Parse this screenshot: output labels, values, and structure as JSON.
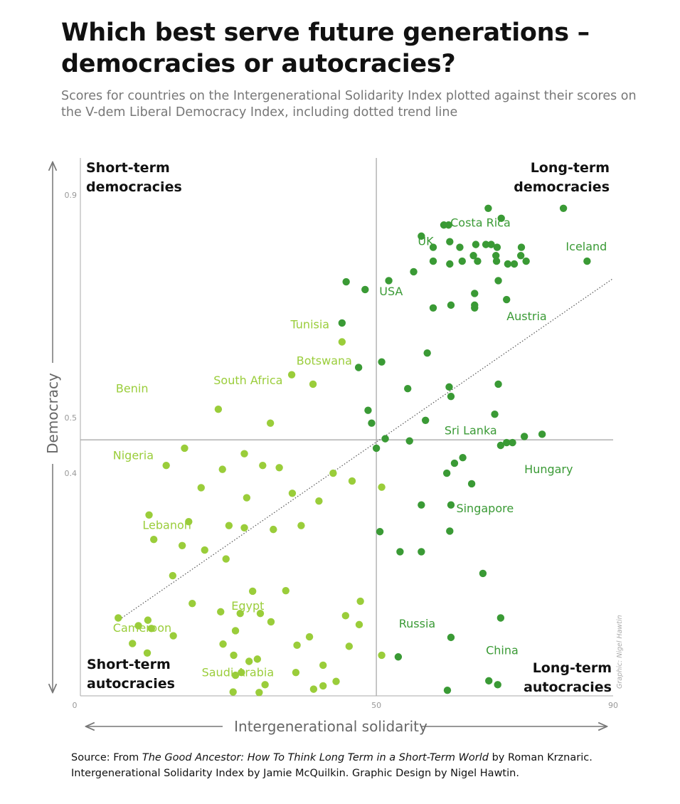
{
  "title": "Which best serve future generations – democracies or autocracies?",
  "subtitle": "Scores for countries on the Intergenerational Solidarity Index plotted against their scores on the V-dem Liberal Democracy Index, including dotted trend line",
  "source": {
    "prefix": "Source: From ",
    "book": "The Good Ancestor: How To Think Long Term in a Short-Term World",
    "suffix": " by Roman Krznaric. Intergenerational Solidarity Index by Jamie McQuilkin. Graphic Design by Nigel Hawtin."
  },
  "credit": "Graphic: Nigel Hawtin",
  "colors": {
    "long_term": "#3a9a35",
    "short_term": "#9acd3a",
    "axis": "#aaaaaa",
    "arrow": "#777777",
    "quadrant_text": "#111111"
  },
  "chart_data": {
    "type": "scatter",
    "xlabel": "Intergenerational solidarity",
    "ylabel": "Democracy",
    "xlim": [
      0,
      90
    ],
    "ylim": [
      0,
      0.9
    ],
    "x_ticks": [
      {
        "value": 0,
        "label": "0"
      },
      {
        "value": 50,
        "label": "50"
      },
      {
        "value": 90,
        "label": "90"
      }
    ],
    "y_ticks": [
      {
        "value": 0.9,
        "label": "0.9"
      },
      {
        "value": 0.5,
        "label": "0.5"
      },
      {
        "value": 0.4,
        "label": "0.4"
      }
    ],
    "divider": {
      "x": 50,
      "y": 0.46
    },
    "quadrants": {
      "top_left": "Short-term democracies",
      "top_right": "Long-term democracies",
      "bottom_left": "Short-term autocracies",
      "bottom_right": "Long-term autocracies"
    },
    "trend_line": {
      "x": [
        7,
        90
      ],
      "y": [
        0.14,
        0.75
      ]
    },
    "labels": [
      {
        "text": "Costa Rica",
        "x": 62.5,
        "y": 0.843
      },
      {
        "text": "UK",
        "x": 57,
        "y": 0.81
      },
      {
        "text": "Iceland",
        "x": 82,
        "y": 0.8
      },
      {
        "text": "USA",
        "x": 50.5,
        "y": 0.72
      },
      {
        "text": "Austria",
        "x": 72,
        "y": 0.675
      },
      {
        "text": "Tunisia",
        "x": 35.5,
        "y": 0.66
      },
      {
        "text": "Botswana",
        "x": 36.5,
        "y": 0.595
      },
      {
        "text": "South Africa",
        "x": 22.5,
        "y": 0.56
      },
      {
        "text": "Benin",
        "x": 6,
        "y": 0.545
      },
      {
        "text": "Sri Lanka",
        "x": 61.5,
        "y": 0.47
      },
      {
        "text": "Nigeria",
        "x": 5.5,
        "y": 0.425
      },
      {
        "text": "Hungary",
        "x": 75,
        "y": 0.4
      },
      {
        "text": "Singapore",
        "x": 63.5,
        "y": 0.33
      },
      {
        "text": "Lebanon",
        "x": 10.5,
        "y": 0.3
      },
      {
        "text": "Egypt",
        "x": 25.5,
        "y": 0.155
      },
      {
        "text": "Russia",
        "x": 53.8,
        "y": 0.123
      },
      {
        "text": "Cameroon",
        "x": 5.5,
        "y": 0.115
      },
      {
        "text": "China",
        "x": 68.5,
        "y": 0.075
      },
      {
        "text": "Saudi Arabia",
        "x": 20.5,
        "y": 0.035
      }
    ],
    "series": [
      {
        "group": "long-term",
        "color": "#3a9a35",
        "points": [
          [
            68.9,
            0.876
          ],
          [
            81.6,
            0.876
          ],
          [
            71.1,
            0.858
          ],
          [
            61.4,
            0.846
          ],
          [
            62.2,
            0.846
          ],
          [
            57.6,
            0.826
          ],
          [
            62.4,
            0.816
          ],
          [
            59.6,
            0.806
          ],
          [
            64.1,
            0.806
          ],
          [
            66.8,
            0.811
          ],
          [
            68.5,
            0.811
          ],
          [
            69.4,
            0.811
          ],
          [
            70.4,
            0.806
          ],
          [
            74.5,
            0.806
          ],
          [
            66.4,
            0.791
          ],
          [
            70.2,
            0.791
          ],
          [
            74.4,
            0.791
          ],
          [
            59.6,
            0.781
          ],
          [
            62.4,
            0.776
          ],
          [
            64.5,
            0.781
          ],
          [
            67.1,
            0.781
          ],
          [
            70.3,
            0.781
          ],
          [
            72.2,
            0.776
          ],
          [
            73.3,
            0.776
          ],
          [
            75.3,
            0.781
          ],
          [
            85.6,
            0.781
          ],
          [
            56.3,
            0.762
          ],
          [
            52.1,
            0.746
          ],
          [
            70.6,
            0.746
          ],
          [
            44.9,
            0.744
          ],
          [
            48.1,
            0.73
          ],
          [
            66.6,
            0.723
          ],
          [
            72.0,
            0.712
          ],
          [
            59.6,
            0.697
          ],
          [
            62.6,
            0.702
          ],
          [
            66.6,
            0.702
          ],
          [
            66.6,
            0.697
          ],
          [
            44.2,
            0.67
          ],
          [
            50.9,
            0.6
          ],
          [
            58.6,
            0.616
          ],
          [
            70.6,
            0.56
          ],
          [
            47.0,
            0.59
          ],
          [
            55.3,
            0.552
          ],
          [
            62.6,
            0.538
          ],
          [
            62.3,
            0.555
          ],
          [
            49.2,
            0.49
          ],
          [
            48.6,
            0.513
          ],
          [
            58.3,
            0.495
          ],
          [
            50.0,
            0.445
          ],
          [
            70.0,
            0.506
          ],
          [
            75.0,
            0.466
          ],
          [
            78.0,
            0.47
          ],
          [
            71.0,
            0.45
          ],
          [
            72.0,
            0.455
          ],
          [
            73.0,
            0.455
          ],
          [
            51.5,
            0.462
          ],
          [
            55.6,
            0.458
          ],
          [
            61.9,
            0.4
          ],
          [
            63.2,
            0.418
          ],
          [
            64.6,
            0.428
          ],
          [
            66.1,
            0.381
          ],
          [
            57.6,
            0.343
          ],
          [
            62.6,
            0.343
          ],
          [
            50.6,
            0.295
          ],
          [
            54.0,
            0.259
          ],
          [
            57.6,
            0.259
          ],
          [
            62.4,
            0.296
          ],
          [
            68.0,
            0.22
          ],
          [
            71.0,
            0.14
          ],
          [
            62.6,
            0.105
          ],
          [
            53.7,
            0.07
          ],
          [
            69.0,
            0.027
          ],
          [
            70.5,
            0.02
          ],
          [
            62.0,
            0.01
          ]
        ]
      },
      {
        "group": "short-term",
        "color": "#9acd3a",
        "points": [
          [
            44.2,
            0.636
          ],
          [
            35.7,
            0.577
          ],
          [
            39.3,
            0.56
          ],
          [
            32.1,
            0.49
          ],
          [
            23.3,
            0.515
          ],
          [
            17.6,
            0.445
          ],
          [
            27.7,
            0.435
          ],
          [
            24.0,
            0.407
          ],
          [
            30.8,
            0.414
          ],
          [
            33.6,
            0.41
          ],
          [
            42.7,
            0.4
          ],
          [
            45.9,
            0.386
          ],
          [
            50.9,
            0.375
          ],
          [
            14.5,
            0.414
          ],
          [
            20.4,
            0.374
          ],
          [
            28.1,
            0.356
          ],
          [
            35.8,
            0.364
          ],
          [
            40.3,
            0.35
          ],
          [
            27.7,
            0.302
          ],
          [
            32.6,
            0.299
          ],
          [
            37.3,
            0.306
          ],
          [
            11.6,
            0.325
          ],
          [
            18.3,
            0.313
          ],
          [
            25.1,
            0.306
          ],
          [
            12.4,
            0.281
          ],
          [
            17.2,
            0.27
          ],
          [
            21.0,
            0.262
          ],
          [
            24.6,
            0.246
          ],
          [
            15.6,
            0.216
          ],
          [
            18.9,
            0.166
          ],
          [
            29.1,
            0.188
          ],
          [
            34.7,
            0.189
          ],
          [
            23.7,
            0.151
          ],
          [
            27.0,
            0.148
          ],
          [
            30.4,
            0.148
          ],
          [
            32.2,
            0.133
          ],
          [
            44.8,
            0.144
          ],
          [
            47.1,
            0.128
          ],
          [
            47.3,
            0.17
          ],
          [
            26.2,
            0.117
          ],
          [
            15.7,
            0.108
          ],
          [
            24.1,
            0.093
          ],
          [
            11.4,
            0.136
          ],
          [
            12.0,
            0.121
          ],
          [
            6.4,
            0.14
          ],
          [
            9.8,
            0.126
          ],
          [
            8.8,
            0.094
          ],
          [
            11.3,
            0.077
          ],
          [
            29.9,
            0.066
          ],
          [
            26.2,
            0.037
          ],
          [
            41.0,
            0.055
          ],
          [
            43.2,
            0.026
          ],
          [
            36.4,
            0.042
          ],
          [
            41.0,
            0.018
          ],
          [
            31.2,
            0.02
          ],
          [
            25.8,
            0.007
          ],
          [
            30.2,
            0.006
          ],
          [
            39.4,
            0.012
          ],
          [
            38.7,
            0.106
          ],
          [
            36.6,
            0.091
          ],
          [
            45.4,
            0.089
          ],
          [
            50.9,
            0.073
          ],
          [
            25.9,
            0.073
          ],
          [
            27.2,
            0.042
          ],
          [
            28.5,
            0.062
          ]
        ]
      }
    ]
  }
}
